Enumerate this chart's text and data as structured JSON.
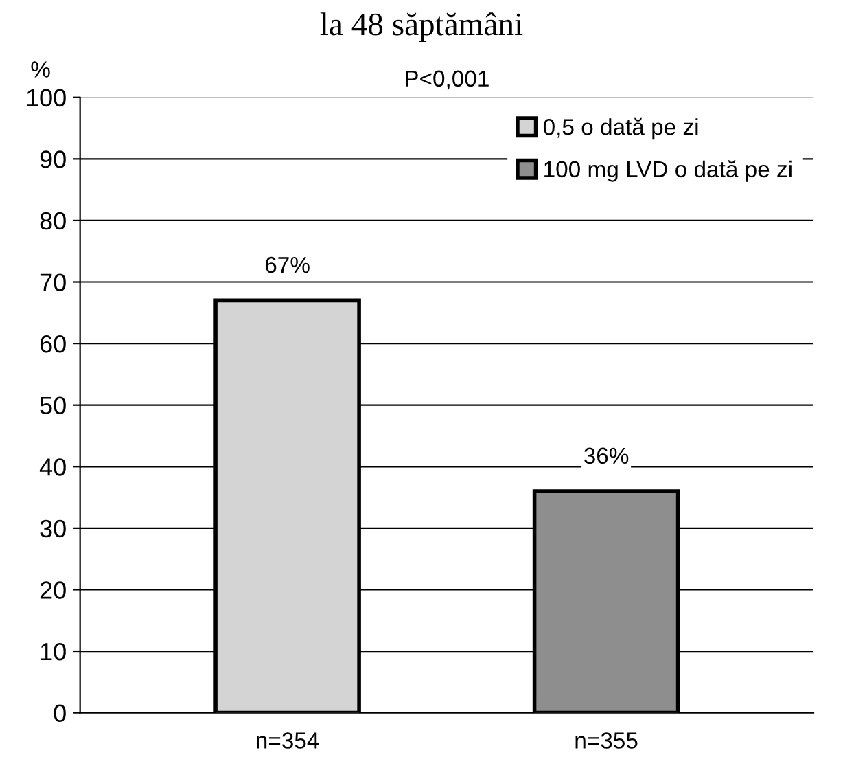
{
  "chart_data": {
    "type": "bar",
    "title": "la 48 săptămâni",
    "ylabel": "%",
    "annotations": [
      "P<0,001"
    ],
    "categories": [
      "n=354",
      "n=355"
    ],
    "series": [
      {
        "name": "0,5 o dată pe zi",
        "color": "#d4d4d4",
        "values": [
          67,
          null
        ],
        "value_labels": [
          "67%",
          null
        ]
      },
      {
        "name": "100 mg LVD o dată pe zi",
        "color": "#8e8e8e",
        "values": [
          null,
          36
        ],
        "value_labels": [
          null,
          "36%"
        ]
      }
    ],
    "ylim": [
      0,
      100
    ],
    "yticks": [
      0,
      10,
      20,
      30,
      40,
      50,
      60,
      70,
      80,
      90,
      100
    ],
    "grid": "y",
    "legend": "top right"
  }
}
